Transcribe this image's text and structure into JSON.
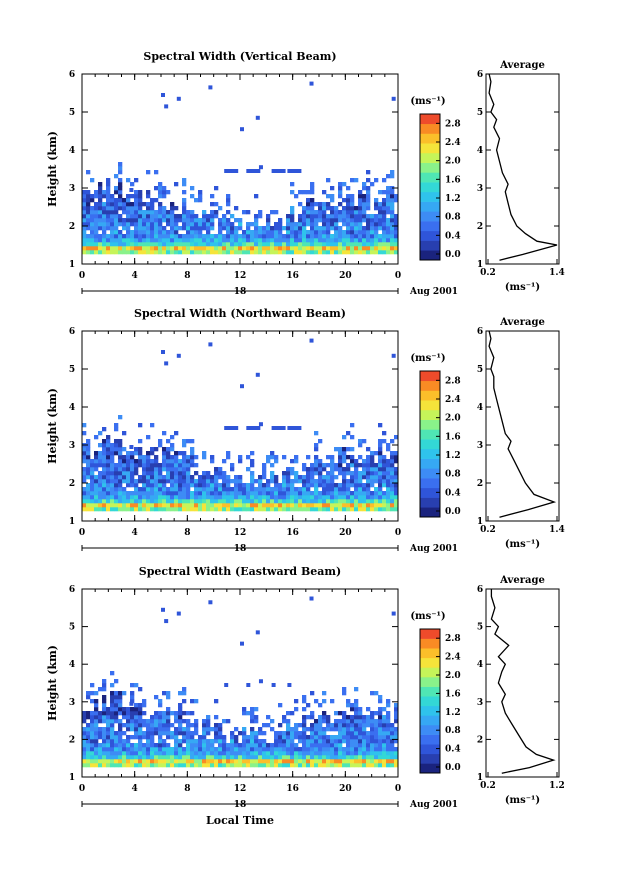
{
  "figure": {
    "date_label": "Aug 2001",
    "day_label": "18",
    "xlabel": "Local Time"
  },
  "chart_data": [
    {
      "type": "heatmap",
      "title": "Spectral Width (Vertical Beam)",
      "ylabel": "Height (km)",
      "xlim": [
        0,
        24
      ],
      "ylim": [
        1,
        6
      ],
      "x_ticks": [
        "0",
        "4",
        "8",
        "12",
        "16",
        "20",
        "0"
      ],
      "y_ticks": [
        "1",
        "2",
        "3",
        "4",
        "5",
        "6"
      ],
      "colorbar": {
        "label": "(ms⁻¹)",
        "ticks": [
          "0.0",
          "0.4",
          "0.8",
          "1.2",
          "1.6",
          "2.0",
          "2.4",
          "2.8"
        ],
        "range": [
          0,
          3.0
        ]
      },
      "profile": {
        "title": "Average",
        "xlabel": "(ms⁻¹)",
        "x_ticks": [
          "0.2",
          "1.4"
        ],
        "xlim": [
          0.2,
          1.4
        ],
        "ylim": [
          1,
          6
        ],
        "y_ticks": [
          "1",
          "2",
          "3",
          "4",
          "5",
          "6"
        ],
        "points": [
          [
            0.4,
            1.1
          ],
          [
            0.8,
            1.25
          ],
          [
            1.4,
            1.5
          ],
          [
            1.05,
            1.6
          ],
          [
            0.85,
            1.8
          ],
          [
            0.7,
            2.0
          ],
          [
            0.6,
            2.3
          ],
          [
            0.55,
            2.6
          ],
          [
            0.5,
            2.9
          ],
          [
            0.55,
            3.1
          ],
          [
            0.45,
            3.4
          ],
          [
            0.4,
            3.7
          ],
          [
            0.35,
            4.0
          ],
          [
            0.4,
            4.3
          ],
          [
            0.3,
            4.6
          ],
          [
            0.35,
            4.8
          ],
          [
            0.25,
            5.0
          ],
          [
            0.3,
            5.2
          ],
          [
            0.22,
            5.5
          ],
          [
            0.25,
            5.8
          ],
          [
            0.22,
            6.0
          ]
        ]
      }
    },
    {
      "type": "heatmap",
      "title": "Spectral Width (Northward Beam)",
      "ylabel": "Height (km)",
      "xlim": [
        0,
        24
      ],
      "ylim": [
        1,
        6
      ],
      "x_ticks": [
        "0",
        "4",
        "8",
        "12",
        "16",
        "20",
        "0"
      ],
      "y_ticks": [
        "1",
        "2",
        "3",
        "4",
        "5",
        "6"
      ],
      "colorbar": {
        "label": "(ms⁻¹)",
        "ticks": [
          "0.0",
          "0.4",
          "0.8",
          "1.2",
          "1.6",
          "2.0",
          "2.4",
          "2.8"
        ],
        "range": [
          0,
          3.0
        ]
      },
      "profile": {
        "title": "Average",
        "xlabel": "(ms⁻¹)",
        "x_ticks": [
          "0.2",
          "1.4"
        ],
        "xlim": [
          0.2,
          1.4
        ],
        "ylim": [
          1,
          6
        ],
        "y_ticks": [
          "1",
          "2",
          "3",
          "4",
          "5",
          "6"
        ],
        "points": [
          [
            0.4,
            1.1
          ],
          [
            0.9,
            1.3
          ],
          [
            1.35,
            1.5
          ],
          [
            1.0,
            1.7
          ],
          [
            0.85,
            2.0
          ],
          [
            0.75,
            2.3
          ],
          [
            0.65,
            2.6
          ],
          [
            0.55,
            2.9
          ],
          [
            0.6,
            3.1
          ],
          [
            0.5,
            3.3
          ],
          [
            0.45,
            3.6
          ],
          [
            0.4,
            3.9
          ],
          [
            0.35,
            4.2
          ],
          [
            0.3,
            4.5
          ],
          [
            0.3,
            4.8
          ],
          [
            0.25,
            5.0
          ],
          [
            0.3,
            5.3
          ],
          [
            0.22,
            5.6
          ],
          [
            0.25,
            5.8
          ],
          [
            0.22,
            6.0
          ]
        ]
      }
    },
    {
      "type": "heatmap",
      "title": "Spectral Width (Eastward Beam)",
      "ylabel": "Height (km)",
      "xlim": [
        0,
        24
      ],
      "ylim": [
        1,
        6
      ],
      "x_ticks": [
        "0",
        "4",
        "8",
        "12",
        "16",
        "20",
        "0"
      ],
      "y_ticks": [
        "1",
        "2",
        "3",
        "4",
        "5",
        "6"
      ],
      "colorbar": {
        "label": "(ms⁻¹)",
        "ticks": [
          "0.0",
          "0.4",
          "0.8",
          "1.2",
          "1.6",
          "2.0",
          "2.4",
          "2.8"
        ],
        "range": [
          0,
          3.0
        ]
      },
      "profile": {
        "title": "Average",
        "xlabel": "(ms⁻¹)",
        "x_ticks": [
          "0.2",
          "1.2"
        ],
        "xlim": [
          0.2,
          1.2
        ],
        "ylim": [
          1,
          6
        ],
        "y_ticks": [
          "1",
          "2",
          "3",
          "4",
          "5",
          "6"
        ],
        "points": [
          [
            0.4,
            1.1
          ],
          [
            0.8,
            1.25
          ],
          [
            1.15,
            1.45
          ],
          [
            0.9,
            1.6
          ],
          [
            0.75,
            1.8
          ],
          [
            0.65,
            2.1
          ],
          [
            0.55,
            2.4
          ],
          [
            0.45,
            2.7
          ],
          [
            0.4,
            3.0
          ],
          [
            0.45,
            3.2
          ],
          [
            0.35,
            3.5
          ],
          [
            0.4,
            3.8
          ],
          [
            0.45,
            4.0
          ],
          [
            0.35,
            4.2
          ],
          [
            0.5,
            4.5
          ],
          [
            0.3,
            4.8
          ],
          [
            0.35,
            5.0
          ],
          [
            0.25,
            5.2
          ],
          [
            0.3,
            5.5
          ],
          [
            0.25,
            5.8
          ],
          [
            0.25,
            6.0
          ]
        ]
      }
    }
  ]
}
